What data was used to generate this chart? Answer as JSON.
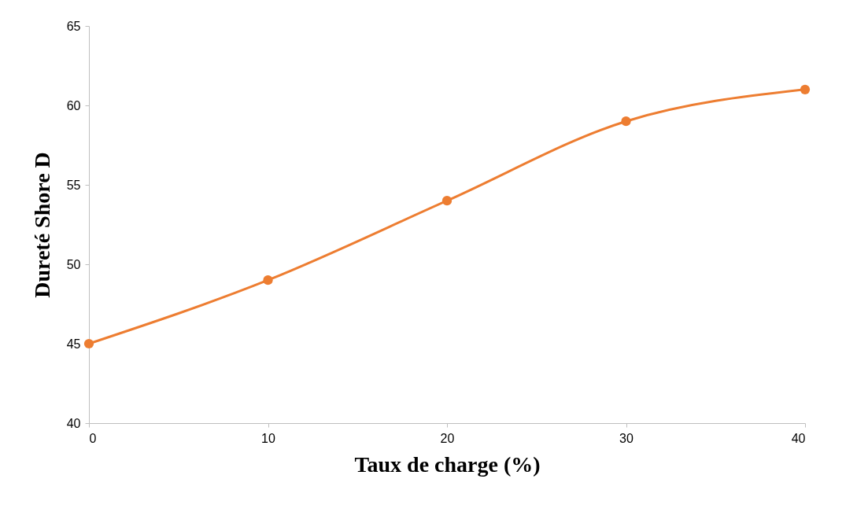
{
  "chart_data": {
    "type": "line",
    "xlabel": "Taux de charge (%)",
    "ylabel": "Dureté Shore D",
    "x": [
      0,
      10,
      20,
      30,
      40
    ],
    "series": [
      {
        "color": "#ed7d31",
        "values": [
          45,
          49,
          54,
          59,
          61
        ]
      }
    ],
    "xlim": [
      0,
      40
    ],
    "xticks": [
      0,
      10,
      20,
      30,
      40
    ],
    "ylim": [
      40,
      65
    ],
    "yticks": [
      40,
      45,
      50,
      55,
      60,
      65
    ],
    "grid": false,
    "marker": "circle",
    "line_style": "solid"
  }
}
